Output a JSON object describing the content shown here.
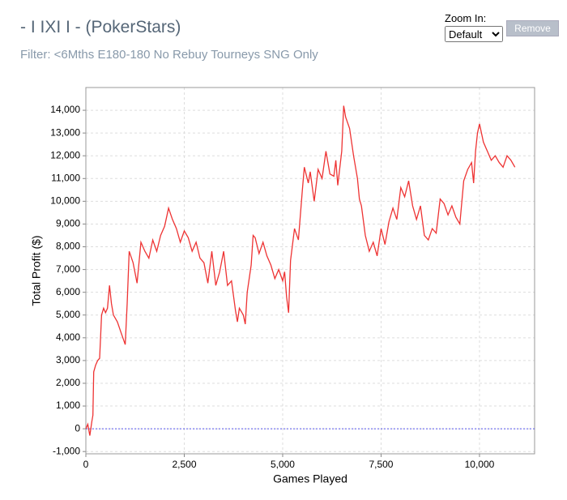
{
  "header": {
    "title": "- I IXI I - (PokerStars)",
    "filter": "Filter: <6Mths E180-180 No Rebuy Tourneys SNG Only"
  },
  "controls": {
    "zoom_label": "Zoom In:",
    "zoom_value": "Default",
    "remove_button": "Remove"
  },
  "chart_data": {
    "type": "line",
    "x_label": "Games Played",
    "y_label": "Total Profit ($)",
    "color": "#ee3333",
    "x": [
      0,
      50,
      100,
      150,
      180,
      200,
      250,
      300,
      350,
      400,
      450,
      500,
      550,
      600,
      650,
      700,
      800,
      900,
      1000,
      1050,
      1100,
      1200,
      1300,
      1400,
      1500,
      1600,
      1700,
      1800,
      1900,
      2000,
      2100,
      2200,
      2300,
      2400,
      2500,
      2600,
      2700,
      2800,
      2900,
      3000,
      3100,
      3200,
      3300,
      3400,
      3500,
      3600,
      3700,
      3800,
      3850,
      3900,
      4000,
      4050,
      4100,
      4200,
      4250,
      4300,
      4400,
      4500,
      4600,
      4700,
      4800,
      4900,
      5000,
      5050,
      5100,
      5150,
      5200,
      5300,
      5400,
      5500,
      5550,
      5650,
      5700,
      5800,
      5900,
      6000,
      6100,
      6200,
      6300,
      6350,
      6400,
      6500,
      6550,
      6600,
      6700,
      6800,
      6900,
      6950,
      7000,
      7100,
      7200,
      7300,
      7400,
      7500,
      7600,
      7700,
      7800,
      7900,
      8000,
      8100,
      8200,
      8300,
      8400,
      8500,
      8600,
      8700,
      8800,
      8900,
      9000,
      9100,
      9200,
      9300,
      9400,
      9500,
      9600,
      9700,
      9800,
      9850,
      9900,
      9950,
      10000,
      10100,
      10200,
      10300,
      10400,
      10500,
      10600,
      10700,
      10800,
      10900
    ],
    "values": [
      0,
      200,
      -300,
      300,
      600,
      2500,
      2800,
      3000,
      3100,
      5000,
      5300,
      5100,
      5300,
      6300,
      5500,
      5000,
      4700,
      4200,
      3700,
      5500,
      7800,
      7300,
      6400,
      8200,
      7800,
      7500,
      8300,
      7800,
      8500,
      8900,
      9700,
      9200,
      8800,
      8200,
      8700,
      8400,
      7800,
      8200,
      7500,
      7300,
      6400,
      7800,
      6300,
      6900,
      7800,
      6300,
      6500,
      5200,
      4700,
      5300,
      5000,
      4600,
      6000,
      7200,
      8500,
      8400,
      7700,
      8200,
      7600,
      7200,
      6600,
      7000,
      6500,
      6900,
      5800,
      5100,
      7400,
      8800,
      8300,
      10500,
      11500,
      10800,
      11300,
      10000,
      11400,
      11000,
      12200,
      11200,
      11100,
      11800,
      10700,
      12200,
      14200,
      13700,
      13200,
      12000,
      11000,
      10100,
      9800,
      8500,
      7800,
      8200,
      7600,
      8800,
      8100,
      9100,
      9700,
      9200,
      10600,
      10200,
      10900,
      9800,
      9200,
      9800,
      8500,
      8300,
      8800,
      8600,
      10100,
      9900,
      9400,
      9800,
      9300,
      9000,
      10900,
      11400,
      11700,
      10800,
      12200,
      13000,
      13400,
      12600,
      12200,
      11800,
      12000,
      11700,
      11500,
      12000,
      11800,
      11500
    ],
    "xlim": [
      0,
      11400
    ],
    "ylim": [
      -1100,
      15000
    ],
    "xticks": [
      0,
      {
        "value": 2500,
        "label": "2,500"
      },
      {
        "value": 5000,
        "label": "5,000"
      },
      {
        "value": 7500,
        "label": "7,500"
      },
      {
        "value": 10000,
        "label": "10,000"
      }
    ],
    "yticks": [
      {
        "value": -1000,
        "label": "-1,000"
      },
      0,
      {
        "value": 1000,
        "label": "1,000"
      },
      {
        "value": 2000,
        "label": "2,000"
      },
      {
        "value": 3000,
        "label": "3,000"
      },
      {
        "value": 4000,
        "label": "4,000"
      },
      {
        "value": 5000,
        "label": "5,000"
      },
      {
        "value": 6000,
        "label": "6,000"
      },
      {
        "value": 7000,
        "label": "7,000"
      },
      {
        "value": 8000,
        "label": "8,000"
      },
      {
        "value": 9000,
        "label": "9,000"
      },
      {
        "value": 10000,
        "label": "10,000"
      },
      {
        "value": 11000,
        "label": "11,000"
      },
      {
        "value": 12000,
        "label": "12,000"
      },
      {
        "value": 13000,
        "label": "13,000"
      },
      {
        "value": 14000,
        "label": "14,000"
      }
    ],
    "grid": true,
    "zero_line": {
      "y": 0,
      "color": "#5555ee"
    }
  }
}
